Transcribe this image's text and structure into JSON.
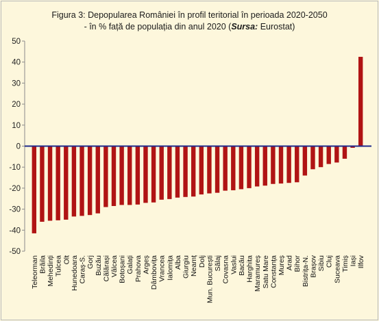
{
  "chart_data": {
    "type": "bar",
    "title_line1": "Figura 3: Depopularea României în profil teritorial în perioada 2020-2050",
    "title_line2_prefix": "- în % față de populația din anul 2020 (",
    "title_source_label": "Sursa:",
    "title_source_value": " Eurostat)",
    "ylim": [
      -50,
      50
    ],
    "yticks": [
      50,
      40,
      30,
      20,
      10,
      0,
      -10,
      -20,
      -30,
      -40,
      -50
    ],
    "bar_color": "#b01414",
    "zero_line_color": "#1f2a8c",
    "gridlines": false,
    "categories": [
      "Teleorman",
      "Brăila",
      "Mehedinți",
      "Tulcea",
      "Olt",
      "Hunedoara",
      "Caraș-S.",
      "Gorj",
      "Buzău",
      "Călărași",
      "Vâlcea",
      "Botoșani",
      "Galați",
      "Prahova",
      "Argeș",
      "Dâmbovița",
      "Vrancea",
      "Ialomița",
      "Alba",
      "Giurgiu",
      "Neamț",
      "Dolj",
      "Mun. București",
      "Sălaj",
      "Covasna",
      "Vaslui",
      "Bacău",
      "Harghita",
      "Maramureș",
      "Satu Mare",
      "Constanța",
      "Mureș",
      "Arad",
      "Bihor",
      "Bistrița-N.",
      "Brașov",
      "Sibiu",
      "Cluj",
      "Suceava",
      "Timiș",
      "Iași",
      "Ilfov"
    ],
    "values": [
      -41.5,
      -36,
      -35.5,
      -35.3,
      -35,
      -33.5,
      -33.2,
      -32.8,
      -32,
      -29,
      -28.5,
      -28,
      -28,
      -27.8,
      -27,
      -26.8,
      -25.5,
      -25.2,
      -24.5,
      -24.2,
      -24,
      -23,
      -22.5,
      -22.2,
      -21.2,
      -21,
      -20.5,
      -20,
      -19.2,
      -18.8,
      -18,
      -17.8,
      -17.5,
      -17.2,
      -14,
      -11,
      -10,
      -8.5,
      -7.8,
      -6,
      -0.8,
      42.5
    ]
  }
}
